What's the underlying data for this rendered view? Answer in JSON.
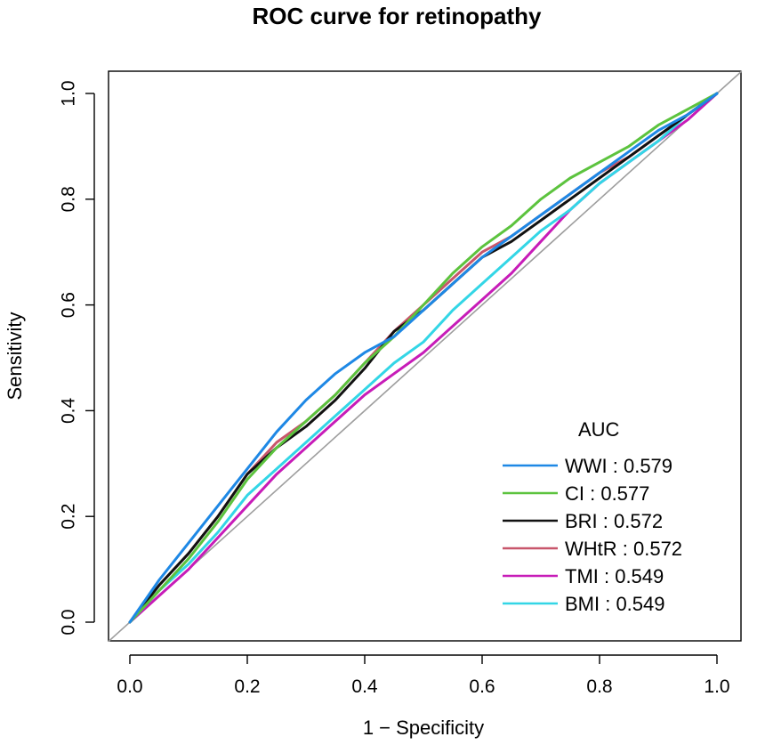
{
  "chart_data": {
    "type": "line",
    "title": "ROC curve for retinopathy",
    "xlabel": "1 − Specificity",
    "ylabel": "Sensitivity",
    "xlim": [
      0,
      1
    ],
    "ylim": [
      0,
      1
    ],
    "x_ticks": [
      "0.0",
      "0.2",
      "0.4",
      "0.6",
      "0.8",
      "1.0"
    ],
    "y_ticks": [
      "0.0",
      "0.2",
      "0.4",
      "0.6",
      "0.8",
      "1.0"
    ],
    "diagonal_color": "#9e9e9e",
    "legend": {
      "title": "AUC",
      "position": "bottom-right"
    },
    "series": [
      {
        "name": "WWI",
        "auc": "0.579",
        "label": "WWI  : 0.579",
        "color": "#1e88e5",
        "x": [
          0,
          0.05,
          0.1,
          0.15,
          0.2,
          0.25,
          0.3,
          0.35,
          0.4,
          0.45,
          0.5,
          0.55,
          0.6,
          0.65,
          0.7,
          0.75,
          0.8,
          0.85,
          0.9,
          0.95,
          1.0
        ],
        "y": [
          0,
          0.08,
          0.15,
          0.22,
          0.29,
          0.36,
          0.42,
          0.47,
          0.51,
          0.54,
          0.59,
          0.64,
          0.69,
          0.73,
          0.77,
          0.81,
          0.85,
          0.89,
          0.93,
          0.96,
          1.0
        ]
      },
      {
        "name": "CI",
        "auc": "0.577",
        "label": "CI   : 0.577",
        "color": "#5cc33e",
        "x": [
          0,
          0.05,
          0.1,
          0.15,
          0.2,
          0.25,
          0.3,
          0.35,
          0.4,
          0.45,
          0.5,
          0.55,
          0.6,
          0.65,
          0.7,
          0.75,
          0.8,
          0.85,
          0.9,
          0.95,
          1.0
        ],
        "y": [
          0,
          0.06,
          0.12,
          0.19,
          0.27,
          0.33,
          0.38,
          0.43,
          0.49,
          0.54,
          0.6,
          0.66,
          0.71,
          0.75,
          0.8,
          0.84,
          0.87,
          0.9,
          0.94,
          0.97,
          1.0
        ]
      },
      {
        "name": "BRI",
        "auc": "0.572",
        "label": "BRI  : 0.572",
        "color": "#111111",
        "x": [
          0,
          0.05,
          0.1,
          0.15,
          0.2,
          0.25,
          0.3,
          0.35,
          0.4,
          0.45,
          0.5,
          0.55,
          0.6,
          0.65,
          0.7,
          0.75,
          0.8,
          0.85,
          0.9,
          0.95,
          1.0
        ],
        "y": [
          0,
          0.07,
          0.13,
          0.2,
          0.28,
          0.33,
          0.37,
          0.42,
          0.48,
          0.55,
          0.59,
          0.64,
          0.69,
          0.72,
          0.76,
          0.8,
          0.84,
          0.88,
          0.92,
          0.96,
          1.0
        ]
      },
      {
        "name": "WHtR",
        "auc": "0.572",
        "label": "WHtR : 0.572",
        "color": "#c8566b",
        "x": [
          0,
          0.05,
          0.1,
          0.15,
          0.2,
          0.25,
          0.3,
          0.35,
          0.4,
          0.45,
          0.5,
          0.55,
          0.6,
          0.65,
          0.7,
          0.75,
          0.8,
          0.85,
          0.9,
          0.95,
          1.0
        ],
        "y": [
          0,
          0.07,
          0.13,
          0.2,
          0.28,
          0.34,
          0.38,
          0.43,
          0.49,
          0.55,
          0.6,
          0.65,
          0.7,
          0.73,
          0.77,
          0.81,
          0.85,
          0.88,
          0.92,
          0.96,
          1.0
        ]
      },
      {
        "name": "TMI",
        "auc": "0.549",
        "label": "TMI  : 0.549",
        "color": "#c71cb8",
        "x": [
          0,
          0.05,
          0.1,
          0.15,
          0.2,
          0.25,
          0.3,
          0.35,
          0.4,
          0.45,
          0.5,
          0.55,
          0.6,
          0.65,
          0.7,
          0.75,
          0.8,
          0.85,
          0.9,
          0.95,
          1.0
        ],
        "y": [
          0,
          0.05,
          0.1,
          0.16,
          0.22,
          0.28,
          0.33,
          0.38,
          0.43,
          0.47,
          0.51,
          0.56,
          0.61,
          0.66,
          0.72,
          0.78,
          0.83,
          0.87,
          0.91,
          0.95,
          1.0
        ]
      },
      {
        "name": "BMI",
        "auc": "0.549",
        "label": "BMI  : 0.549",
        "color": "#33d6e6",
        "x": [
          0,
          0.05,
          0.1,
          0.15,
          0.2,
          0.25,
          0.3,
          0.35,
          0.4,
          0.45,
          0.5,
          0.55,
          0.6,
          0.65,
          0.7,
          0.75,
          0.8,
          0.85,
          0.9,
          0.95,
          1.0
        ],
        "y": [
          0,
          0.06,
          0.11,
          0.17,
          0.24,
          0.29,
          0.34,
          0.39,
          0.44,
          0.49,
          0.53,
          0.59,
          0.64,
          0.69,
          0.74,
          0.78,
          0.83,
          0.87,
          0.91,
          0.96,
          1.0
        ]
      }
    ]
  }
}
